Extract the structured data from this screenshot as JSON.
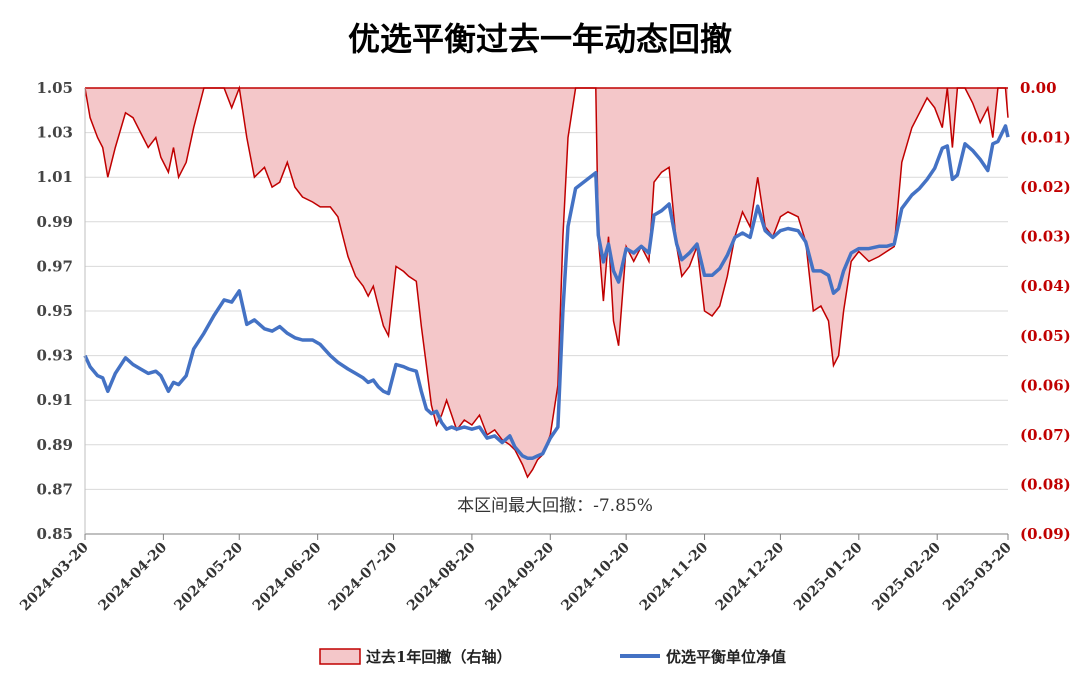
{
  "chart_data": {
    "type": "line",
    "title": "优选平衡过去一年动态回撤",
    "left_axis": {
      "ylim": [
        0.85,
        1.05
      ],
      "ticks": [
        "1.05",
        "1.03",
        "1.01",
        "0.99",
        "0.97",
        "0.95",
        "0.93",
        "0.91",
        "0.89",
        "0.87",
        "0.85"
      ]
    },
    "right_axis": {
      "ylim": [
        -0.09,
        0.0
      ],
      "ticks": [
        "0.00",
        "(0.01)",
        "(0.02)",
        "(0.03)",
        "(0.04)",
        "(0.05)",
        "(0.06)",
        "(0.07)",
        "(0.08)",
        "(0.09)"
      ]
    },
    "x_ticks": [
      "2024-03-20",
      "2024-04-20",
      "2024-05-20",
      "2024-06-20",
      "2024-07-20",
      "2024-08-20",
      "2024-09-20",
      "2024-10-20",
      "2024-11-20",
      "2024-12-20",
      "2025-01-20",
      "2025-02-20",
      "2025-03-20"
    ],
    "grid": "horizontal",
    "legend_position": "bottom",
    "annotation": "本区间最大回撤：-7.85%",
    "colors": {
      "nav": "#4472c4",
      "drawdown_line": "#c00000",
      "drawdown_fill": "#f4c7c9"
    },
    "series": [
      {
        "name": "过去1年回撤（右轴）",
        "axis": "right",
        "style": "area",
        "points": [
          [
            "2024-03-20",
            0.0
          ],
          [
            "2024-03-22",
            -0.006
          ],
          [
            "2024-03-25",
            -0.01
          ],
          [
            "2024-03-27",
            -0.012
          ],
          [
            "2024-03-29",
            -0.018
          ],
          [
            "2024-04-01",
            -0.012
          ],
          [
            "2024-04-05",
            -0.005
          ],
          [
            "2024-04-08",
            -0.006
          ],
          [
            "2024-04-11",
            -0.009
          ],
          [
            "2024-04-14",
            -0.012
          ],
          [
            "2024-04-17",
            -0.01
          ],
          [
            "2024-04-19",
            -0.014
          ],
          [
            "2024-04-22",
            -0.017
          ],
          [
            "2024-04-24",
            -0.012
          ],
          [
            "2024-04-26",
            -0.018
          ],
          [
            "2024-04-29",
            -0.015
          ],
          [
            "2024-05-02",
            -0.008
          ],
          [
            "2024-05-06",
            0.0
          ],
          [
            "2024-05-10",
            0.0
          ],
          [
            "2024-05-14",
            0.0
          ],
          [
            "2024-05-17",
            -0.004
          ],
          [
            "2024-05-20",
            0.0
          ],
          [
            "2024-05-23",
            -0.01
          ],
          [
            "2024-05-26",
            -0.018
          ],
          [
            "2024-05-30",
            -0.016
          ],
          [
            "2024-06-02",
            -0.02
          ],
          [
            "2024-06-05",
            -0.019
          ],
          [
            "2024-06-08",
            -0.015
          ],
          [
            "2024-06-11",
            -0.02
          ],
          [
            "2024-06-14",
            -0.022
          ],
          [
            "2024-06-18",
            -0.023
          ],
          [
            "2024-06-21",
            -0.024
          ],
          [
            "2024-06-25",
            -0.024
          ],
          [
            "2024-06-28",
            -0.026
          ],
          [
            "2024-07-02",
            -0.034
          ],
          [
            "2024-07-05",
            -0.038
          ],
          [
            "2024-07-08",
            -0.04
          ],
          [
            "2024-07-10",
            -0.042
          ],
          [
            "2024-07-12",
            -0.04
          ],
          [
            "2024-07-14",
            -0.044
          ],
          [
            "2024-07-16",
            -0.048
          ],
          [
            "2024-07-18",
            -0.05
          ],
          [
            "2024-07-21",
            -0.036
          ],
          [
            "2024-07-24",
            -0.037
          ],
          [
            "2024-07-26",
            -0.038
          ],
          [
            "2024-07-29",
            -0.039
          ],
          [
            "2024-07-31",
            -0.048
          ],
          [
            "2024-08-02",
            -0.056
          ],
          [
            "2024-08-04",
            -0.064
          ],
          [
            "2024-08-06",
            -0.068
          ],
          [
            "2024-08-08",
            -0.066
          ],
          [
            "2024-08-10",
            -0.063
          ],
          [
            "2024-08-12",
            -0.066
          ],
          [
            "2024-08-14",
            -0.069
          ],
          [
            "2024-08-17",
            -0.067
          ],
          [
            "2024-08-20",
            -0.068
          ],
          [
            "2024-08-23",
            -0.066
          ],
          [
            "2024-08-26",
            -0.07
          ],
          [
            "2024-08-29",
            -0.069
          ],
          [
            "2024-09-01",
            -0.071
          ],
          [
            "2024-09-04",
            -0.072
          ],
          [
            "2024-09-06",
            -0.073
          ],
          [
            "2024-09-09",
            -0.076
          ],
          [
            "2024-09-11",
            -0.0785
          ],
          [
            "2024-09-13",
            -0.077
          ],
          [
            "2024-09-15",
            -0.075
          ],
          [
            "2024-09-17",
            -0.074
          ],
          [
            "2024-09-20",
            -0.07
          ],
          [
            "2024-09-23",
            -0.06
          ],
          [
            "2024-09-25",
            -0.03
          ],
          [
            "2024-09-27",
            -0.01
          ],
          [
            "2024-09-30",
            0.0
          ],
          [
            "2024-10-08",
            0.0
          ],
          [
            "2024-10-09",
            -0.03
          ],
          [
            "2024-10-11",
            -0.043
          ],
          [
            "2024-10-13",
            -0.03
          ],
          [
            "2024-10-15",
            -0.047
          ],
          [
            "2024-10-17",
            -0.052
          ],
          [
            "2024-10-20",
            -0.032
          ],
          [
            "2024-10-23",
            -0.035
          ],
          [
            "2024-10-26",
            -0.032
          ],
          [
            "2024-10-29",
            -0.035
          ],
          [
            "2024-10-31",
            -0.019
          ],
          [
            "2024-11-03",
            -0.017
          ],
          [
            "2024-11-06",
            -0.016
          ],
          [
            "2024-11-09",
            -0.032
          ],
          [
            "2024-11-11",
            -0.038
          ],
          [
            "2024-11-14",
            -0.036
          ],
          [
            "2024-11-17",
            -0.032
          ],
          [
            "2024-11-20",
            -0.045
          ],
          [
            "2024-11-23",
            -0.046
          ],
          [
            "2024-11-26",
            -0.044
          ],
          [
            "2024-11-29",
            -0.038
          ],
          [
            "2024-12-02",
            -0.03
          ],
          [
            "2024-12-05",
            -0.025
          ],
          [
            "2024-12-08",
            -0.028
          ],
          [
            "2024-12-11",
            -0.018
          ],
          [
            "2024-12-14",
            -0.028
          ],
          [
            "2024-12-17",
            -0.03
          ],
          [
            "2024-12-20",
            -0.026
          ],
          [
            "2024-12-23",
            -0.025
          ],
          [
            "2024-12-27",
            -0.026
          ],
          [
            "2024-12-30",
            -0.031
          ],
          [
            "2025-01-02",
            -0.045
          ],
          [
            "2025-01-05",
            -0.044
          ],
          [
            "2025-01-08",
            -0.047
          ],
          [
            "2025-01-10",
            -0.056
          ],
          [
            "2025-01-12",
            -0.054
          ],
          [
            "2025-01-14",
            -0.045
          ],
          [
            "2025-01-17",
            -0.035
          ],
          [
            "2025-01-20",
            -0.033
          ],
          [
            "2025-01-24",
            -0.035
          ],
          [
            "2025-01-28",
            -0.034
          ],
          [
            "2025-01-31",
            -0.033
          ],
          [
            "2025-02-03",
            -0.032
          ],
          [
            "2025-02-06",
            -0.015
          ],
          [
            "2025-02-10",
            -0.008
          ],
          [
            "2025-02-13",
            -0.005
          ],
          [
            "2025-02-16",
            -0.002
          ],
          [
            "2025-02-19",
            -0.004
          ],
          [
            "2025-02-22",
            -0.008
          ],
          [
            "2025-02-24",
            0.0
          ],
          [
            "2025-02-26",
            -0.012
          ],
          [
            "2025-02-28",
            0.0
          ],
          [
            "2025-03-03",
            0.0
          ],
          [
            "2025-03-06",
            -0.003
          ],
          [
            "2025-03-09",
            -0.007
          ],
          [
            "2025-03-12",
            -0.004
          ],
          [
            "2025-03-14",
            -0.01
          ],
          [
            "2025-03-16",
            0.0
          ],
          [
            "2025-03-19",
            0.0
          ],
          [
            "2025-03-20",
            -0.006
          ]
        ]
      },
      {
        "name": "优选平衡单位净值",
        "axis": "left",
        "style": "line",
        "points": [
          [
            "2024-03-20",
            0.93
          ],
          [
            "2024-03-22",
            0.925
          ],
          [
            "2024-03-25",
            0.921
          ],
          [
            "2024-03-27",
            0.92
          ],
          [
            "2024-03-29",
            0.914
          ],
          [
            "2024-04-01",
            0.922
          ],
          [
            "2024-04-05",
            0.929
          ],
          [
            "2024-04-08",
            0.926
          ],
          [
            "2024-04-11",
            0.924
          ],
          [
            "2024-04-14",
            0.922
          ],
          [
            "2024-04-17",
            0.923
          ],
          [
            "2024-04-19",
            0.921
          ],
          [
            "2024-04-22",
            0.914
          ],
          [
            "2024-04-24",
            0.918
          ],
          [
            "2024-04-26",
            0.917
          ],
          [
            "2024-04-29",
            0.921
          ],
          [
            "2024-05-02",
            0.933
          ],
          [
            "2024-05-06",
            0.94
          ],
          [
            "2024-05-10",
            0.948
          ],
          [
            "2024-05-14",
            0.955
          ],
          [
            "2024-05-17",
            0.954
          ],
          [
            "2024-05-20",
            0.959
          ],
          [
            "2024-05-23",
            0.944
          ],
          [
            "2024-05-26",
            0.946
          ],
          [
            "2024-05-30",
            0.942
          ],
          [
            "2024-06-02",
            0.941
          ],
          [
            "2024-06-05",
            0.943
          ],
          [
            "2024-06-08",
            0.94
          ],
          [
            "2024-06-11",
            0.938
          ],
          [
            "2024-06-14",
            0.937
          ],
          [
            "2024-06-18",
            0.937
          ],
          [
            "2024-06-21",
            0.935
          ],
          [
            "2024-06-25",
            0.93
          ],
          [
            "2024-06-28",
            0.927
          ],
          [
            "2024-07-02",
            0.924
          ],
          [
            "2024-07-05",
            0.922
          ],
          [
            "2024-07-08",
            0.92
          ],
          [
            "2024-07-10",
            0.918
          ],
          [
            "2024-07-12",
            0.919
          ],
          [
            "2024-07-14",
            0.916
          ],
          [
            "2024-07-16",
            0.914
          ],
          [
            "2024-07-18",
            0.913
          ],
          [
            "2024-07-21",
            0.926
          ],
          [
            "2024-07-24",
            0.925
          ],
          [
            "2024-07-26",
            0.924
          ],
          [
            "2024-07-29",
            0.923
          ],
          [
            "2024-07-31",
            0.914
          ],
          [
            "2024-08-02",
            0.906
          ],
          [
            "2024-08-04",
            0.904
          ],
          [
            "2024-08-06",
            0.905
          ],
          [
            "2024-08-08",
            0.9
          ],
          [
            "2024-08-10",
            0.897
          ],
          [
            "2024-08-12",
            0.898
          ],
          [
            "2024-08-14",
            0.897
          ],
          [
            "2024-08-17",
            0.898
          ],
          [
            "2024-08-20",
            0.897
          ],
          [
            "2024-08-23",
            0.898
          ],
          [
            "2024-08-26",
            0.893
          ],
          [
            "2024-08-29",
            0.894
          ],
          [
            "2024-09-01",
            0.891
          ],
          [
            "2024-09-04",
            0.894
          ],
          [
            "2024-09-06",
            0.889
          ],
          [
            "2024-09-09",
            0.885
          ],
          [
            "2024-09-11",
            0.884
          ],
          [
            "2024-09-13",
            0.884
          ],
          [
            "2024-09-15",
            0.885
          ],
          [
            "2024-09-17",
            0.886
          ],
          [
            "2024-09-20",
            0.893
          ],
          [
            "2024-09-23",
            0.898
          ],
          [
            "2024-09-25",
            0.95
          ],
          [
            "2024-09-27",
            0.988
          ],
          [
            "2024-09-30",
            1.005
          ],
          [
            "2024-10-08",
            1.012
          ],
          [
            "2024-10-09",
            0.984
          ],
          [
            "2024-10-11",
            0.972
          ],
          [
            "2024-10-13",
            0.98
          ],
          [
            "2024-10-15",
            0.968
          ],
          [
            "2024-10-17",
            0.963
          ],
          [
            "2024-10-20",
            0.978
          ],
          [
            "2024-10-23",
            0.976
          ],
          [
            "2024-10-26",
            0.979
          ],
          [
            "2024-10-29",
            0.976
          ],
          [
            "2024-10-31",
            0.993
          ],
          [
            "2024-11-03",
            0.995
          ],
          [
            "2024-11-06",
            0.998
          ],
          [
            "2024-11-09",
            0.98
          ],
          [
            "2024-11-11",
            0.973
          ],
          [
            "2024-11-14",
            0.976
          ],
          [
            "2024-11-17",
            0.98
          ],
          [
            "2024-11-20",
            0.966
          ],
          [
            "2024-11-23",
            0.966
          ],
          [
            "2024-11-26",
            0.969
          ],
          [
            "2024-11-29",
            0.975
          ],
          [
            "2024-12-02",
            0.983
          ],
          [
            "2024-12-05",
            0.985
          ],
          [
            "2024-12-08",
            0.983
          ],
          [
            "2024-12-11",
            0.997
          ],
          [
            "2024-12-14",
            0.986
          ],
          [
            "2024-12-17",
            0.983
          ],
          [
            "2024-12-20",
            0.986
          ],
          [
            "2024-12-23",
            0.987
          ],
          [
            "2024-12-27",
            0.986
          ],
          [
            "2024-12-30",
            0.981
          ],
          [
            "2025-01-02",
            0.968
          ],
          [
            "2025-01-05",
            0.968
          ],
          [
            "2025-01-08",
            0.966
          ],
          [
            "2025-01-10",
            0.958
          ],
          [
            "2025-01-12",
            0.96
          ],
          [
            "2025-01-14",
            0.968
          ],
          [
            "2025-01-17",
            0.976
          ],
          [
            "2025-01-20",
            0.978
          ],
          [
            "2025-01-24",
            0.978
          ],
          [
            "2025-01-28",
            0.979
          ],
          [
            "2025-01-31",
            0.979
          ],
          [
            "2025-02-03",
            0.98
          ],
          [
            "2025-02-06",
            0.996
          ],
          [
            "2025-02-10",
            1.002
          ],
          [
            "2025-02-13",
            1.005
          ],
          [
            "2025-02-16",
            1.009
          ],
          [
            "2025-02-19",
            1.014
          ],
          [
            "2025-02-22",
            1.023
          ],
          [
            "2025-02-24",
            1.024
          ],
          [
            "2025-02-26",
            1.009
          ],
          [
            "2025-02-28",
            1.011
          ],
          [
            "2025-03-03",
            1.025
          ],
          [
            "2025-03-06",
            1.022
          ],
          [
            "2025-03-09",
            1.018
          ],
          [
            "2025-03-12",
            1.013
          ],
          [
            "2025-03-14",
            1.025
          ],
          [
            "2025-03-16",
            1.026
          ],
          [
            "2025-03-19",
            1.033
          ],
          [
            "2025-03-20",
            1.028
          ]
        ]
      }
    ]
  }
}
